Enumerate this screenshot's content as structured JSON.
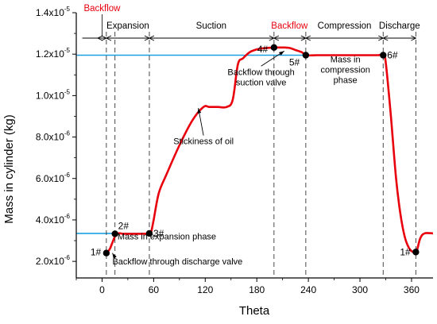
{
  "chart_data": {
    "type": "line",
    "xlabel": "Theta",
    "ylabel": "Mass in cylinder (kg)",
    "xlim": [
      -30,
      385
    ],
    "ylim": [
      1.2e-06,
      1.4e-05
    ],
    "x_ticks": [
      {
        "value": 0,
        "label": "0"
      },
      {
        "value": 60,
        "label": "60"
      },
      {
        "value": 120,
        "label": "120"
      },
      {
        "value": 180,
        "label": "180"
      },
      {
        "value": 240,
        "label": "240"
      },
      {
        "value": 300,
        "label": "300"
      },
      {
        "value": 360,
        "label": "360"
      }
    ],
    "y_ticks": [
      {
        "value": 2e-06,
        "mant": "2.0x10",
        "exp": "-6"
      },
      {
        "value": 4e-06,
        "mant": "4.0x10",
        "exp": "-6"
      },
      {
        "value": 6e-06,
        "mant": "6.0x10",
        "exp": "-6"
      },
      {
        "value": 8e-06,
        "mant": "8.0x10",
        "exp": "-6"
      },
      {
        "value": 1e-05,
        "mant": "1.0x10",
        "exp": "-5"
      },
      {
        "value": 1.2e-05,
        "mant": "1.2x10",
        "exp": "-5"
      },
      {
        "value": 1.4e-05,
        "mant": "1.4x10",
        "exp": "-5"
      }
    ],
    "series": [
      {
        "color": "#e8000d",
        "x": [
          2,
          5,
          9,
          12,
          17,
          25,
          35,
          45,
          55,
          57,
          60,
          66,
          75,
          90,
          105,
          118,
          125,
          135,
          145,
          152,
          158,
          164,
          172,
          182,
          192,
          200,
          210,
          218,
          225,
          232,
          238,
          250,
          270,
          300,
          320,
          327,
          330,
          336,
          342,
          347,
          352,
          357,
          362,
          366,
          370,
          375,
          385
        ],
        "y": [
          2.5e-06,
          2.4e-06,
          2.6e-06,
          2.9e-06,
          3.33e-06,
          3.33e-06,
          3.33e-06,
          3.33e-06,
          3.35e-06,
          3.4e-06,
          4e-06,
          5.3e-06,
          6.2e-06,
          7.6e-06,
          8.8e-06,
          9.45e-06,
          9.45e-06,
          9.45e-06,
          9.45e-06,
          9.8e-06,
          1.15e-05,
          1.18e-05,
          1.21e-05,
          1.225e-05,
          1.23e-05,
          1.232e-05,
          1.232e-05,
          1.23e-05,
          1.22e-05,
          1.21e-05,
          1.195e-05,
          1.195e-05,
          1.195e-05,
          1.195e-05,
          1.195e-05,
          1.195e-05,
          1.16e-05,
          9e-06,
          6e-06,
          4.3e-06,
          3.2e-06,
          2.65e-06,
          2.45e-06,
          2.5e-06,
          3.1e-06,
          3.35e-06,
          3.35e-06
        ]
      }
    ],
    "reference_lines": [
      {
        "color": "#1ba1e2",
        "y": 3.35e-06,
        "x_from": -30,
        "x_to": 57
      },
      {
        "color": "#1ba1e2",
        "y": 1.195e-05,
        "x_from": -30,
        "x_to": 327
      }
    ],
    "vertical_dashed": [
      5,
      15,
      55,
      200,
      237,
      327,
      365
    ],
    "phases": [
      {
        "label": "Backflow",
        "color": "#e8000d",
        "from": -5,
        "to": 5,
        "text_x": 0
      },
      {
        "label": "Expansion",
        "color": "#000000",
        "from": 5,
        "to": 55,
        "text_x": 30
      },
      {
        "label": "Suction",
        "color": "#000000",
        "from": 55,
        "to": 200,
        "text_x": 127
      },
      {
        "label": "Backflow",
        "color": "#e8000d",
        "from": 200,
        "to": 237,
        "text_x": 218
      },
      {
        "label": "Compression",
        "color": "#000000",
        "from": 237,
        "to": 327,
        "text_x": 282
      },
      {
        "label": "Discharge",
        "color": "#000000",
        "from": 327,
        "to": 365,
        "text_x": 346
      }
    ],
    "points": [
      {
        "label": "1#",
        "x": 5,
        "y": 2.4e-06
      },
      {
        "label": "2#",
        "x": 15,
        "y": 3.33e-06
      },
      {
        "label": "3#",
        "x": 55,
        "y": 3.35e-06
      },
      {
        "label": "4#",
        "x": 200,
        "y": 1.232e-05
      },
      {
        "label": "5#",
        "x": 237,
        "y": 1.195e-05
      },
      {
        "label": "6#",
        "x": 327,
        "y": 1.195e-05
      },
      {
        "label": "1#",
        "x": 365,
        "y": 2.45e-06
      }
    ],
    "annotations": [
      {
        "text": [
          "Mass in expansion phase"
        ],
        "tx": 18,
        "ty": 3.05e-06
      },
      {
        "text": [
          "Backflow through discharge valve"
        ],
        "tx": 12,
        "ty": 1.85e-06,
        "ax": 12,
        "ay": 2.4e-06
      },
      {
        "text": [
          "Stickiness of oil"
        ],
        "tx": 118,
        "ty": 7.65e-06,
        "ax": 112,
        "ay": 9.4e-06
      },
      {
        "text": [
          "Backflow through",
          "suction valve"
        ],
        "tx": 185,
        "ty": 1.1e-05,
        "ax": 212,
        "ay": 1.215e-05
      },
      {
        "text": [
          "Mass in",
          "compression",
          "phase"
        ],
        "tx": 283,
        "ty": 1.16e-05
      }
    ]
  }
}
